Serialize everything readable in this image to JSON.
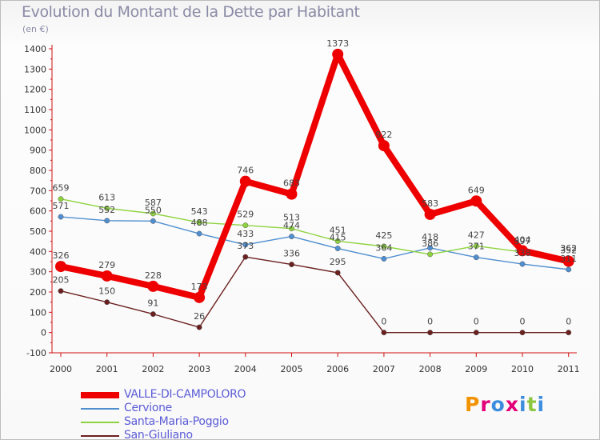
{
  "chart_data": {
    "type": "line",
    "title": "Evolution du Montant de la Dette par Habitant",
    "subtitle": "(en €)",
    "xlabel": "",
    "ylabel": "",
    "categories": [
      "2000",
      "2001",
      "2002",
      "2003",
      "2004",
      "2005",
      "2006",
      "2007",
      "2008",
      "2009",
      "2010",
      "2011"
    ],
    "ylim": [
      -100,
      1400
    ],
    "yticks": [
      -100,
      0,
      100,
      200,
      300,
      400,
      500,
      600,
      700,
      800,
      900,
      1000,
      1100,
      1200,
      1300,
      1400
    ],
    "grid": false,
    "legend_position": "bottom-left",
    "series": [
      {
        "name": "VALLE-DI-CAMPOLORO",
        "color": "#ee0000",
        "emphasis": true,
        "values": [
          326,
          279,
          228,
          173,
          746,
          683,
          1373,
          922,
          583,
          649,
          404,
          352
        ],
        "labels": [
          "326",
          "279",
          "228",
          "173",
          "746",
          "683",
          "1373",
          "922",
          "583",
          "649",
          "404",
          "352"
        ]
      },
      {
        "name": "Cervione",
        "color": "#4f8fd0",
        "emphasis": false,
        "values": [
          571,
          552,
          550,
          488,
          433,
          474,
          415,
          364,
          418,
          371,
          338,
          311
        ],
        "labels": [
          "571",
          "552",
          "550",
          "488",
          "433",
          "474",
          "415",
          "364",
          "418",
          "371",
          "338",
          "311"
        ]
      },
      {
        "name": "Santa-Maria-Poggio",
        "color": "#8ed33f",
        "emphasis": false,
        "values": [
          659,
          613,
          587,
          543,
          529,
          513,
          451,
          425,
          386,
          427,
          397,
          362
        ],
        "labels": [
          "659",
          "613",
          "587",
          "543",
          "529",
          "513",
          "451",
          "425",
          "386",
          "427",
          "397",
          "362"
        ]
      },
      {
        "name": "San-Giuliano",
        "color": "#6b1f1f",
        "emphasis": false,
        "values": [
          205,
          150,
          91,
          26,
          373,
          336,
          295,
          0,
          0,
          0,
          0,
          0
        ],
        "labels": [
          "205",
          "150",
          "91",
          "26",
          "373",
          "336",
          "295",
          "0",
          "0",
          "0",
          "0",
          "0"
        ]
      }
    ]
  },
  "logo": {
    "letters": [
      "P",
      "r",
      "o",
      "x",
      "i",
      "t",
      "i"
    ],
    "colors": [
      "#f39200",
      "#e2007a",
      "#3c8dde",
      "#e2007a",
      "#3c8dde",
      "#8dc63f",
      "#3c8dde"
    ]
  }
}
